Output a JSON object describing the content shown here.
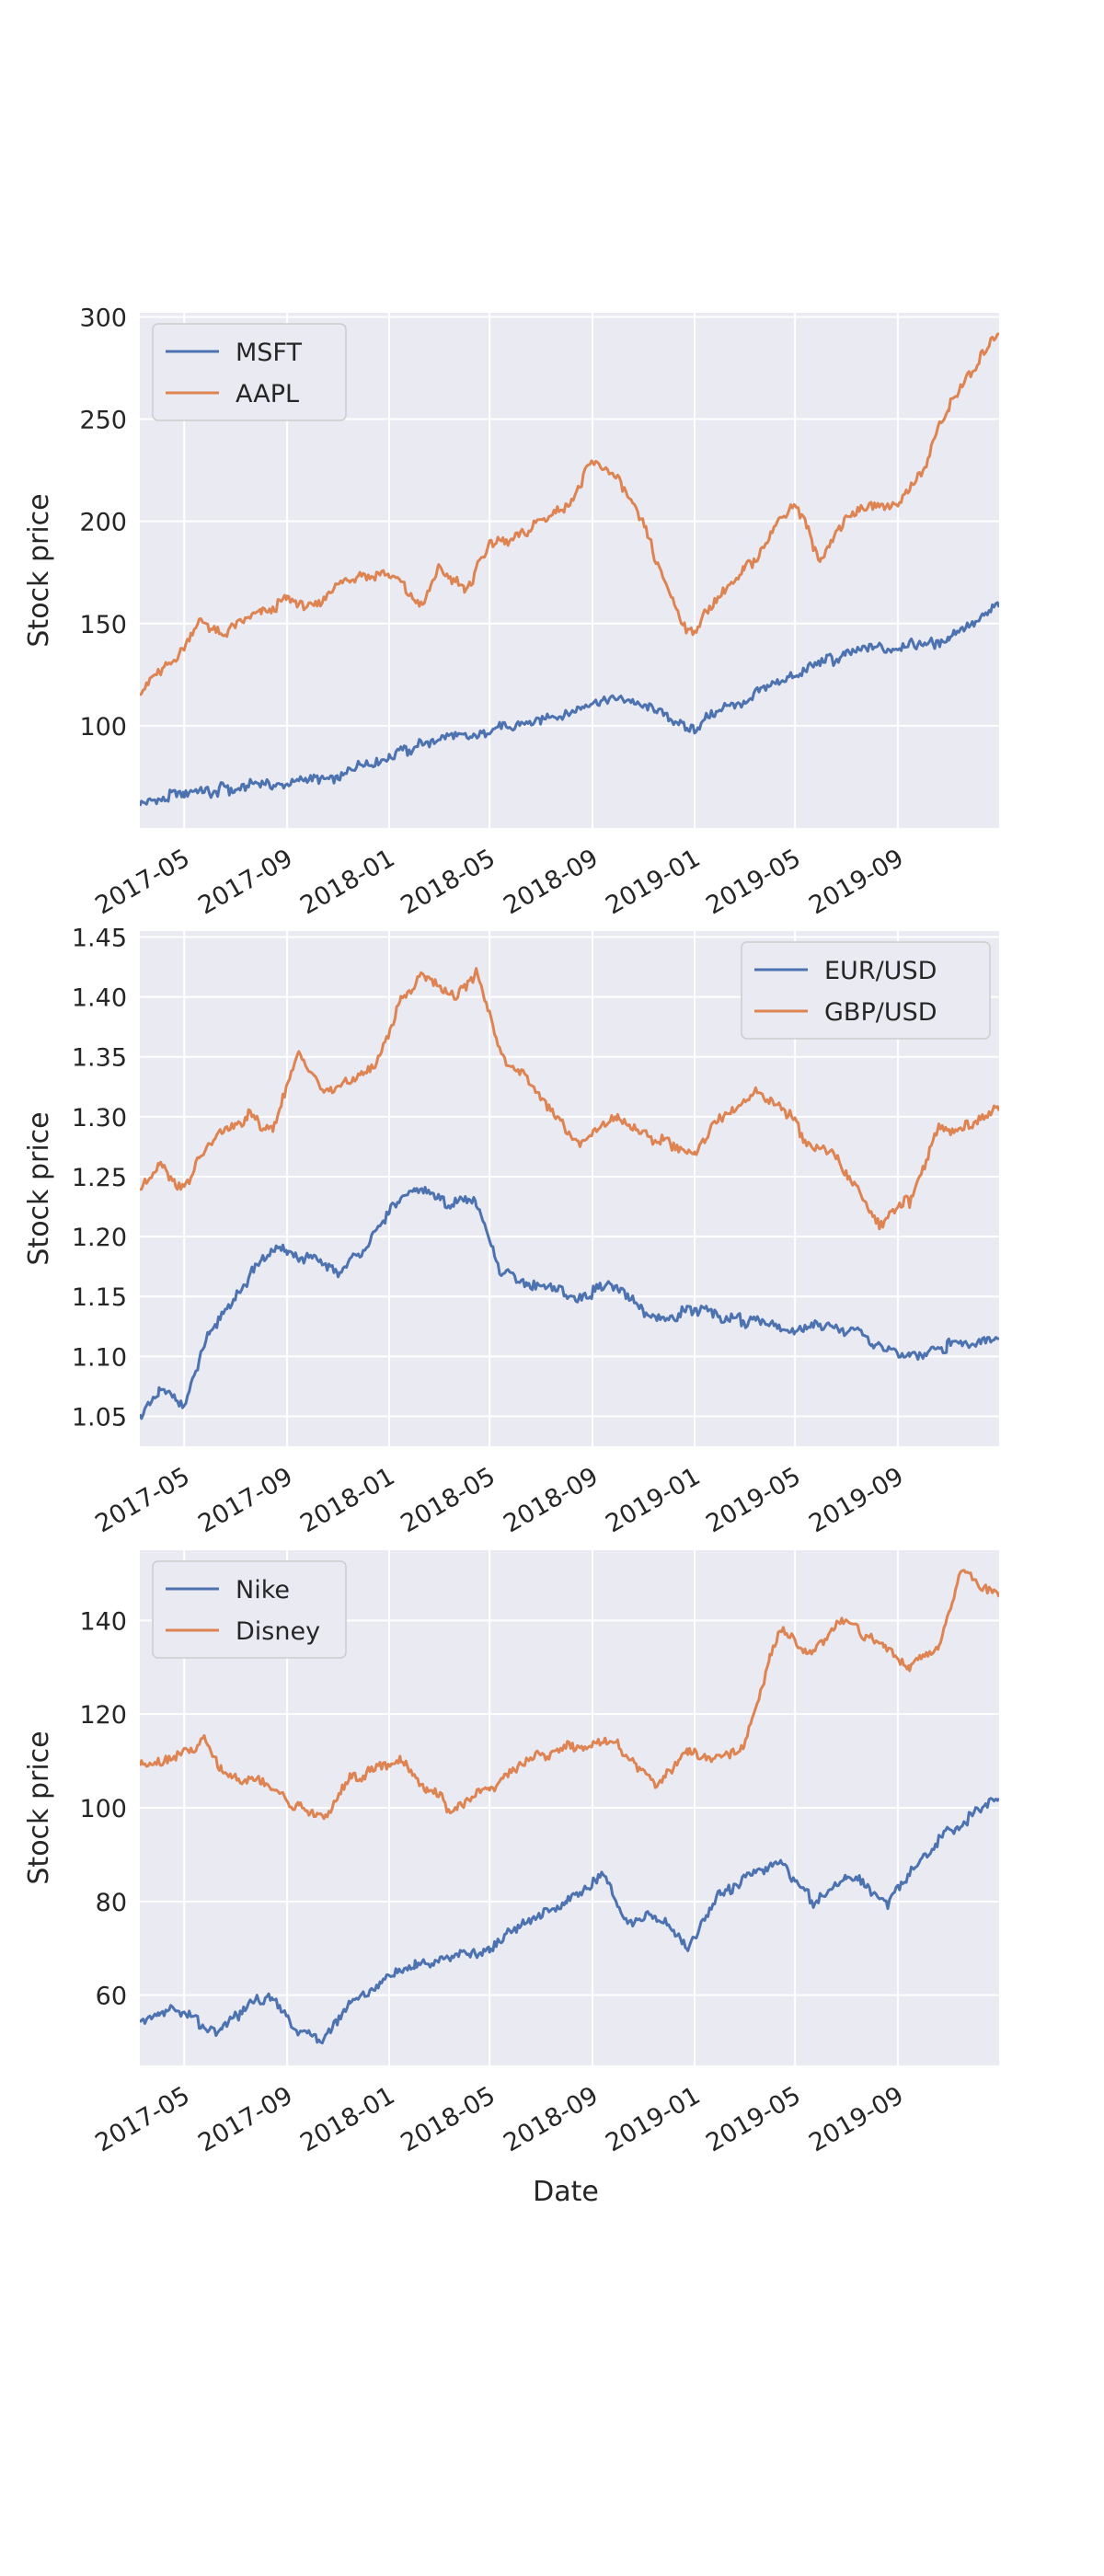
{
  "figure": {
    "xlabel": "Date"
  },
  "colors": {
    "blue": "#4c72b0",
    "orange": "#dd8452",
    "axes_bg": "#eaeaf2",
    "grid": "#ffffff",
    "text": "#262626"
  },
  "chart_data": [
    {
      "type": "line",
      "xlabel": "",
      "ylabel": "Stock price",
      "x_ticks": [
        "2017-05",
        "2017-09",
        "2018-01",
        "2018-05",
        "2018-09",
        "2019-01",
        "2019-05",
        "2019-09"
      ],
      "xlim": [
        "2017-03-09",
        "2019-12-31"
      ],
      "ylim": [
        50,
        302
      ],
      "y_ticks": [
        "100",
        "150",
        "200",
        "250",
        "300"
      ],
      "grid": true,
      "legend": "top-left",
      "series": [
        {
          "name": "MSFT",
          "x": [
            "2017-03-09",
            "2017-05-01",
            "2017-07-01",
            "2017-09-01",
            "2017-11-01",
            "2018-01-01",
            "2018-03-01",
            "2018-05-01",
            "2018-07-01",
            "2018-09-01",
            "2018-10-01",
            "2018-11-15",
            "2018-12-24",
            "2019-01-15",
            "2019-03-01",
            "2019-05-01",
            "2019-07-01",
            "2019-09-01",
            "2019-11-01",
            "2019-12-31"
          ],
          "values": [
            63,
            66,
            70,
            73,
            76,
            86,
            93,
            97,
            103,
            112,
            114,
            108,
            97,
            104,
            112,
            124,
            136,
            138,
            143,
            158
          ]
        },
        {
          "name": "AAPL",
          "x": [
            "2017-03-09",
            "2017-04-01",
            "2017-05-01",
            "2017-05-15",
            "2017-06-15",
            "2017-08-01",
            "2017-09-01",
            "2017-10-01",
            "2017-11-15",
            "2018-01-01",
            "2018-02-10",
            "2018-03-01",
            "2018-04-01",
            "2018-05-01",
            "2018-06-01",
            "2018-08-01",
            "2018-09-01",
            "2018-10-01",
            "2018-10-25",
            "2018-11-20",
            "2018-12-24",
            "2019-01-15",
            "2019-03-01",
            "2019-05-01",
            "2019-06-01",
            "2019-07-01",
            "2019-09-01",
            "2019-10-01",
            "2019-11-01",
            "2019-12-31"
          ],
          "values": [
            118,
            125,
            140,
            150,
            146,
            155,
            163,
            158,
            172,
            174,
            158,
            178,
            166,
            188,
            192,
            208,
            228,
            222,
            205,
            178,
            145,
            155,
            175,
            210,
            180,
            203,
            210,
            225,
            258,
            292
          ]
        }
      ]
    },
    {
      "type": "line",
      "xlabel": "",
      "ylabel": "Stock price",
      "x_ticks": [
        "2017-05",
        "2017-09",
        "2018-01",
        "2018-05",
        "2018-09",
        "2019-01",
        "2019-05",
        "2019-09"
      ],
      "xlim": [
        "2017-03-09",
        "2019-12-31"
      ],
      "ylim": [
        1.025,
        1.455
      ],
      "y_ticks": [
        "1.05",
        "1.10",
        "1.15",
        "1.20",
        "1.25",
        "1.30",
        "1.35",
        "1.40",
        "1.45"
      ],
      "grid": true,
      "legend": "top-right",
      "series": [
        {
          "name": "EUR/USD",
          "x": [
            "2017-03-09",
            "2017-04-01",
            "2017-05-01",
            "2017-06-01",
            "2017-07-01",
            "2017-08-01",
            "2017-09-01",
            "2017-10-01",
            "2017-11-01",
            "2017-12-01",
            "2018-01-01",
            "2018-02-01",
            "2018-03-01",
            "2018-04-15",
            "2018-05-15",
            "2018-06-15",
            "2018-08-15",
            "2018-10-01",
            "2018-11-15",
            "2019-01-01",
            "2019-03-01",
            "2019-05-01",
            "2019-06-15",
            "2019-08-01",
            "2019-09-15",
            "2019-10-30",
            "2019-12-31"
          ],
          "values": [
            1.05,
            1.07,
            1.06,
            1.12,
            1.15,
            1.18,
            1.19,
            1.18,
            1.17,
            1.19,
            1.22,
            1.24,
            1.23,
            1.23,
            1.17,
            1.16,
            1.15,
            1.16,
            1.13,
            1.14,
            1.13,
            1.12,
            1.13,
            1.11,
            1.1,
            1.11,
            1.115
          ]
        },
        {
          "name": "GBP/USD",
          "x": [
            "2017-03-09",
            "2017-04-01",
            "2017-05-01",
            "2017-05-20",
            "2017-06-15",
            "2017-07-15",
            "2017-08-15",
            "2017-09-15",
            "2017-10-15",
            "2017-11-15",
            "2017-12-15",
            "2018-01-15",
            "2018-02-15",
            "2018-03-20",
            "2018-04-15",
            "2018-05-15",
            "2018-06-15",
            "2018-08-15",
            "2018-10-01",
            "2018-11-15",
            "2019-01-01",
            "2019-02-01",
            "2019-03-15",
            "2019-04-15",
            "2019-05-15",
            "2019-06-15",
            "2019-08-10",
            "2019-09-15",
            "2019-10-20",
            "2019-11-15",
            "2019-12-31"
          ],
          "values": [
            1.24,
            1.26,
            1.24,
            1.27,
            1.29,
            1.3,
            1.29,
            1.35,
            1.32,
            1.33,
            1.34,
            1.4,
            1.42,
            1.4,
            1.42,
            1.35,
            1.33,
            1.28,
            1.3,
            1.28,
            1.27,
            1.3,
            1.32,
            1.31,
            1.28,
            1.27,
            1.21,
            1.23,
            1.29,
            1.29,
            1.305
          ]
        }
      ]
    },
    {
      "type": "line",
      "xlabel": "Date",
      "ylabel": "Stock price",
      "x_ticks": [
        "2017-05",
        "2017-09",
        "2018-01",
        "2018-05",
        "2018-09",
        "2019-01",
        "2019-05",
        "2019-09"
      ],
      "xlim": [
        "2017-03-09",
        "2019-12-31"
      ],
      "ylim": [
        45,
        155
      ],
      "y_ticks": [
        "60",
        "80",
        "100",
        "120",
        "140"
      ],
      "grid": true,
      "legend": "top-left",
      "series": [
        {
          "name": "Nike",
          "x": [
            "2017-03-09",
            "2017-04-01",
            "2017-05-01",
            "2017-06-15",
            "2017-07-15",
            "2017-08-15",
            "2017-09-15",
            "2017-10-15",
            "2017-11-15",
            "2018-01-01",
            "2018-02-01",
            "2018-03-15",
            "2018-05-01",
            "2018-06-15",
            "2018-08-01",
            "2018-09-15",
            "2018-10-15",
            "2018-11-15",
            "2018-12-24",
            "2019-02-01",
            "2019-03-15",
            "2019-04-15",
            "2019-05-25",
            "2019-07-01",
            "2019-08-20",
            "2019-09-20",
            "2019-11-01",
            "2019-12-31"
          ],
          "values": [
            54,
            57,
            56,
            52,
            58,
            59,
            52,
            50,
            58,
            64,
            66,
            68,
            70,
            76,
            80,
            85,
            75,
            77,
            70,
            82,
            86,
            88,
            80,
            86,
            80,
            88,
            95,
            102
          ]
        },
        {
          "name": "Disney",
          "x": [
            "2017-03-09",
            "2017-04-01",
            "2017-05-01",
            "2017-05-25",
            "2017-06-15",
            "2017-08-01",
            "2017-09-15",
            "2017-10-15",
            "2017-11-15",
            "2017-12-15",
            "2018-01-15",
            "2018-02-15",
            "2018-03-15",
            "2018-05-01",
            "2018-06-15",
            "2018-07-15",
            "2018-08-15",
            "2018-10-01",
            "2018-11-15",
            "2018-12-24",
            "2019-01-15",
            "2019-03-01",
            "2019-04-01",
            "2019-04-15",
            "2019-05-15",
            "2019-07-01",
            "2019-08-15",
            "2019-09-15",
            "2019-10-20",
            "2019-11-15",
            "2019-12-31"
          ],
          "values": [
            109,
            110,
            112,
            114,
            108,
            105,
            100,
            98,
            106,
            108,
            110,
            104,
            100,
            104,
            110,
            112,
            113,
            114,
            104,
            112,
            110,
            112,
            132,
            138,
            133,
            140,
            134,
            130,
            135,
            150,
            145
          ]
        }
      ]
    }
  ]
}
